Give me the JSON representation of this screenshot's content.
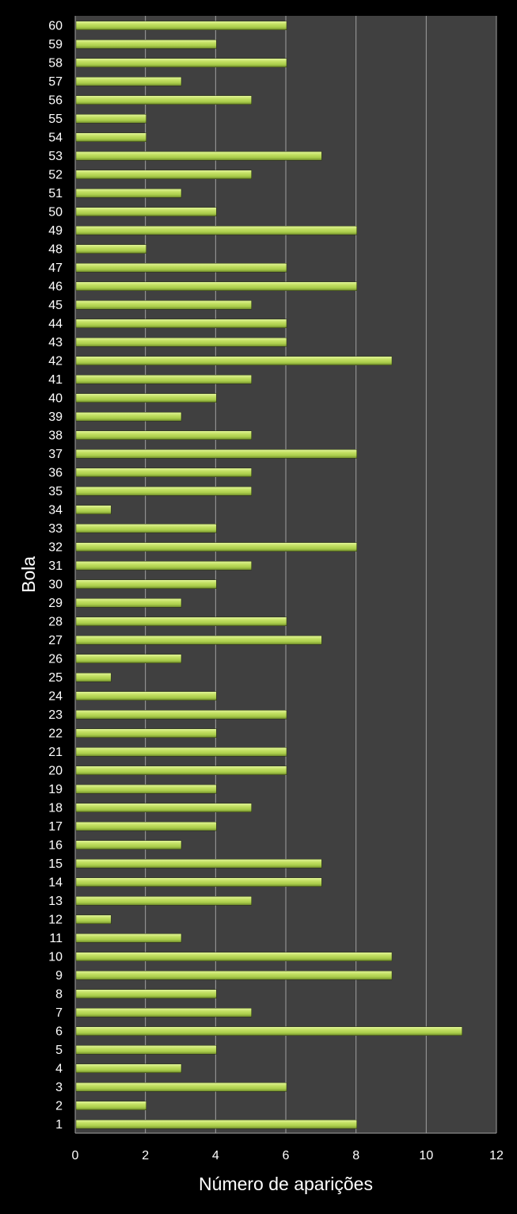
{
  "chart_data": {
    "type": "bar",
    "orientation": "horizontal",
    "title": "",
    "xlabel": "Número de aparições",
    "ylabel": "Bola",
    "xlim": [
      0,
      12
    ],
    "xticks": [
      "0",
      "2",
      "4",
      "6",
      "8",
      "10",
      "12"
    ],
    "grid": "vertical",
    "legend": "none",
    "colors": {
      "background": "#000000",
      "plot_area": "#404040",
      "bar": "#b5d855",
      "bar_highlight": "#e2f59a",
      "bar_shadow": "#6f8a2a",
      "gridline": "#a0a0a0"
    },
    "categories": [
      "1",
      "2",
      "3",
      "4",
      "5",
      "6",
      "7",
      "8",
      "9",
      "10",
      "11",
      "12",
      "13",
      "14",
      "15",
      "16",
      "17",
      "18",
      "19",
      "20",
      "21",
      "22",
      "23",
      "24",
      "25",
      "26",
      "27",
      "28",
      "29",
      "30",
      "31",
      "32",
      "33",
      "34",
      "35",
      "36",
      "37",
      "38",
      "39",
      "40",
      "41",
      "42",
      "43",
      "44",
      "45",
      "46",
      "47",
      "48",
      "49",
      "50",
      "51",
      "52",
      "53",
      "54",
      "55",
      "56",
      "57",
      "58",
      "59",
      "60"
    ],
    "values": [
      8,
      2,
      6,
      3,
      4,
      11,
      5,
      4,
      9,
      9,
      3,
      1,
      5,
      7,
      7,
      3,
      4,
      5,
      4,
      6,
      6,
      4,
      6,
      4,
      1,
      3,
      7,
      6,
      3,
      4,
      5,
      8,
      4,
      1,
      5,
      5,
      8,
      5,
      3,
      4,
      5,
      9,
      6,
      6,
      5,
      8,
      6,
      2,
      8,
      4,
      3,
      5,
      7,
      2,
      2,
      5,
      3,
      6,
      4,
      6
    ]
  }
}
